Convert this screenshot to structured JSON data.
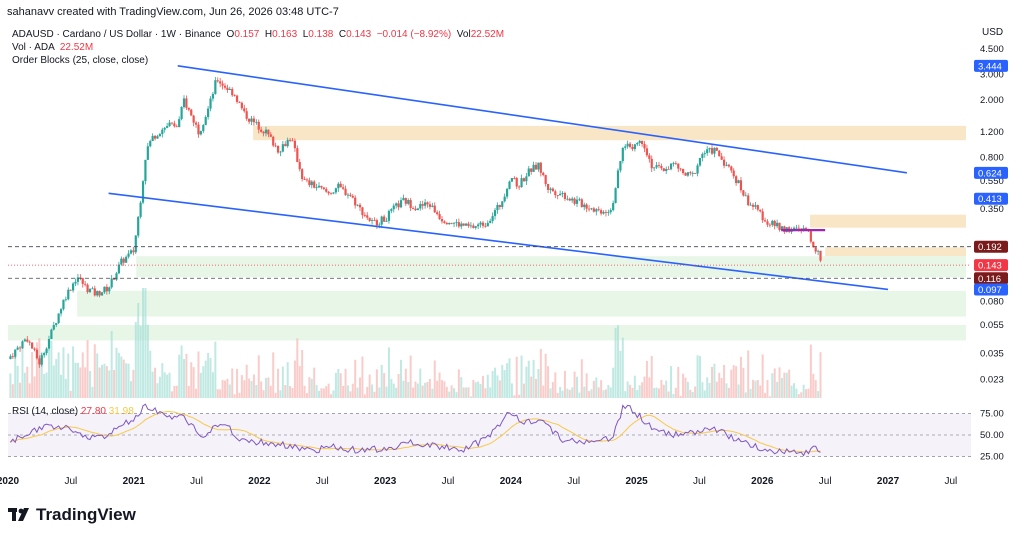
{
  "header": {
    "credit": "sahanavv created with TradingView.com, Jun 26, 2026 03:48 UTC-7"
  },
  "legend": {
    "symbol": "ADAUSD · Cardano / US Dollar · 1W · Binance",
    "o_label": "O",
    "o": "0.157",
    "h_label": "H",
    "h": "0.163",
    "l_label": "L",
    "l": "0.138",
    "c_label": "C",
    "c": "0.143",
    "chg": "−0.014 (−8.92%)",
    "vol_label": "Vol",
    "vol": "22.52M",
    "vol_ind": "Vol · ADA",
    "vol_ind_val": "22.52M",
    "ob": "Order Blocks (25, close, close)"
  },
  "rsi": {
    "label": "RSI (14, close)",
    "v1": "27.80",
    "v2": "31.98"
  },
  "axis": {
    "currency": "USD"
  },
  "brand": {
    "name": "TradingView"
  },
  "colors": {
    "up": "#26a69a",
    "down": "#ef5350",
    "trend": "#2962ff",
    "zone_orange": "#f5deb3",
    "zone_green": "#dff3df",
    "rsi_line": "#7e57c2",
    "rsi_ma": "#f7c948"
  },
  "chart_data": {
    "type": "candlestick",
    "scale": "log",
    "ylim": [
      0.018,
      5.2
    ],
    "y_ticks": [
      "4.500",
      "3.000",
      "2.000",
      "1.200",
      "0.800",
      "0.550",
      "0.350",
      "0.080",
      "0.055",
      "0.035",
      "0.023"
    ],
    "price_labels": [
      {
        "text": "3.444",
        "value": 3.444,
        "color": "#2962ff"
      },
      {
        "text": "0.624",
        "value": 0.624,
        "color": "#2962ff"
      },
      {
        "text": "0.413",
        "value": 0.413,
        "color": "#2962ff"
      },
      {
        "text": "0.192",
        "value": 0.192,
        "color": "#7a1a1a"
      },
      {
        "text": "0.143",
        "value": 0.143,
        "color": "#f23645"
      },
      {
        "text": "0.116",
        "value": 0.116,
        "color": "#7a1a1a"
      },
      {
        "text": "0.097",
        "value": 0.097,
        "color": "#2962ff"
      }
    ],
    "x_ticks": [
      {
        "label": "2020",
        "t": 2020.0
      },
      {
        "label": "Jul",
        "t": 2020.5
      },
      {
        "label": "2021",
        "t": 2021.0
      },
      {
        "label": "Jul",
        "t": 2021.5
      },
      {
        "label": "2022",
        "t": 2022.0
      },
      {
        "label": "Jul",
        "t": 2022.5
      },
      {
        "label": "2023",
        "t": 2023.0
      },
      {
        "label": "Jul",
        "t": 2023.5
      },
      {
        "label": "2024",
        "t": 2024.0
      },
      {
        "label": "Jul",
        "t": 2024.5
      },
      {
        "label": "2025",
        "t": 2025.0
      },
      {
        "label": "Jul",
        "t": 2025.5
      },
      {
        "label": "2026",
        "t": 2026.0
      },
      {
        "label": "Jul",
        "t": 2026.5
      },
      {
        "label": "2027",
        "t": 2027.0
      },
      {
        "label": "Jul",
        "t": 2027.5
      }
    ],
    "price_path": [
      [
        2020.0,
        0.032
      ],
      [
        2020.15,
        0.045
      ],
      [
        2020.25,
        0.03
      ],
      [
        2020.35,
        0.05
      ],
      [
        2020.45,
        0.085
      ],
      [
        2020.55,
        0.12
      ],
      [
        2020.62,
        0.1
      ],
      [
        2020.7,
        0.09
      ],
      [
        2020.8,
        0.1
      ],
      [
        2020.9,
        0.15
      ],
      [
        2021.0,
        0.18
      ],
      [
        2021.05,
        0.38
      ],
      [
        2021.1,
        0.9
      ],
      [
        2021.15,
        1.1
      ],
      [
        2021.2,
        1.2
      ],
      [
        2021.28,
        1.35
      ],
      [
        2021.35,
        1.3
      ],
      [
        2021.4,
        2.0
      ],
      [
        2021.45,
        1.6
      ],
      [
        2021.52,
        1.2
      ],
      [
        2021.6,
        1.8
      ],
      [
        2021.66,
        2.8
      ],
      [
        2021.72,
        2.5
      ],
      [
        2021.8,
        2.2
      ],
      [
        2021.88,
        1.6
      ],
      [
        2021.95,
        1.4
      ],
      [
        2022.05,
        1.2
      ],
      [
        2022.15,
        0.9
      ],
      [
        2022.25,
        1.1
      ],
      [
        2022.35,
        0.55
      ],
      [
        2022.45,
        0.5
      ],
      [
        2022.55,
        0.45
      ],
      [
        2022.62,
        0.5
      ],
      [
        2022.72,
        0.44
      ],
      [
        2022.8,
        0.35
      ],
      [
        2022.9,
        0.28
      ],
      [
        2023.0,
        0.3
      ],
      [
        2023.08,
        0.36
      ],
      [
        2023.15,
        0.4
      ],
      [
        2023.25,
        0.36
      ],
      [
        2023.35,
        0.38
      ],
      [
        2023.45,
        0.3
      ],
      [
        2023.55,
        0.28
      ],
      [
        2023.68,
        0.26
      ],
      [
        2023.8,
        0.28
      ],
      [
        2023.92,
        0.38
      ],
      [
        2024.0,
        0.6
      ],
      [
        2024.05,
        0.5
      ],
      [
        2024.15,
        0.65
      ],
      [
        2024.22,
        0.7
      ],
      [
        2024.3,
        0.48
      ],
      [
        2024.4,
        0.45
      ],
      [
        2024.5,
        0.4
      ],
      [
        2024.6,
        0.37
      ],
      [
        2024.7,
        0.34
      ],
      [
        2024.8,
        0.35
      ],
      [
        2024.85,
        0.6
      ],
      [
        2024.9,
        1.0
      ],
      [
        2024.95,
        0.95
      ],
      [
        2025.05,
        1.05
      ],
      [
        2025.12,
        0.7
      ],
      [
        2025.2,
        0.65
      ],
      [
        2025.3,
        0.72
      ],
      [
        2025.38,
        0.6
      ],
      [
        2025.45,
        0.6
      ],
      [
        2025.52,
        0.85
      ],
      [
        2025.62,
        0.9
      ],
      [
        2025.72,
        0.7
      ],
      [
        2025.8,
        0.55
      ],
      [
        2025.88,
        0.4
      ],
      [
        2025.95,
        0.35
      ],
      [
        2026.05,
        0.28
      ],
      [
        2026.15,
        0.26
      ],
      [
        2026.25,
        0.25
      ],
      [
        2026.35,
        0.25
      ],
      [
        2026.42,
        0.19
      ],
      [
        2026.48,
        0.143
      ]
    ],
    "zones": [
      {
        "kind": "bearish",
        "y1": 1.05,
        "y2": 1.32,
        "x1": 2021.95,
        "x2": 2027.62
      },
      {
        "kind": "bearish",
        "y1": 0.26,
        "y2": 0.32,
        "x1": 2026.38,
        "x2": 2027.62
      },
      {
        "kind": "bearish",
        "y1": 0.165,
        "y2": 0.19,
        "x1": 2026.5,
        "x2": 2027.62
      },
      {
        "kind": "bullish",
        "y1": 0.118,
        "y2": 0.165,
        "x1": 2021.02,
        "x2": 2027.62
      },
      {
        "kind": "bullish",
        "y1": 0.063,
        "y2": 0.095,
        "x1": 2020.55,
        "x2": 2027.62
      },
      {
        "kind": "bullish",
        "y1": 0.043,
        "y2": 0.055,
        "x1": 2020.0,
        "x2": 2027.62
      }
    ],
    "trendlines": [
      {
        "from": [
          2021.35,
          3.444
        ],
        "to": [
          2027.15,
          0.624
        ]
      },
      {
        "from": [
          2020.8,
          0.45
        ],
        "to": [
          2027.0,
          0.097
        ]
      }
    ],
    "dashed_levels": [
      0.192,
      0.116
    ],
    "rsi_ticks": [
      "75.00",
      "50.00",
      "25.00"
    ],
    "rsi_series": [
      [
        2020.0,
        40
      ],
      [
        2020.2,
        55
      ],
      [
        2020.4,
        62
      ],
      [
        2020.6,
        48
      ],
      [
        2020.8,
        50
      ],
      [
        2021.0,
        70
      ],
      [
        2021.1,
        85
      ],
      [
        2021.2,
        75
      ],
      [
        2021.4,
        70
      ],
      [
        2021.55,
        50
      ],
      [
        2021.7,
        65
      ],
      [
        2021.85,
        45
      ],
      [
        2022.0,
        42
      ],
      [
        2022.2,
        38
      ],
      [
        2022.4,
        32
      ],
      [
        2022.6,
        36
      ],
      [
        2022.8,
        32
      ],
      [
        2023.0,
        34
      ],
      [
        2023.2,
        42
      ],
      [
        2023.4,
        38
      ],
      [
        2023.6,
        32
      ],
      [
        2023.8,
        45
      ],
      [
        2024.0,
        78
      ],
      [
        2024.1,
        65
      ],
      [
        2024.25,
        68
      ],
      [
        2024.4,
        45
      ],
      [
        2024.6,
        42
      ],
      [
        2024.8,
        45
      ],
      [
        2024.9,
        85
      ],
      [
        2025.0,
        75
      ],
      [
        2025.15,
        55
      ],
      [
        2025.3,
        50
      ],
      [
        2025.5,
        55
      ],
      [
        2025.6,
        58
      ],
      [
        2025.75,
        48
      ],
      [
        2025.9,
        38
      ],
      [
        2026.05,
        32
      ],
      [
        2026.2,
        30
      ],
      [
        2026.35,
        30
      ],
      [
        2026.42,
        36
      ],
      [
        2026.48,
        27.8
      ]
    ]
  }
}
